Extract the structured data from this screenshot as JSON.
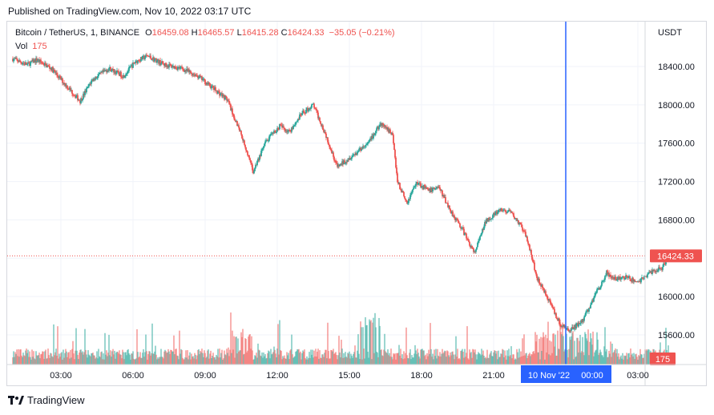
{
  "header": {
    "published": "Published on TradingView.com, Nov 10, 2022 03:17 UTC"
  },
  "legend": {
    "symbol": "Bitcoin / TetherUS, 1, BINANCE",
    "open_label": "O",
    "open": "16459.08",
    "high_label": "H",
    "high": "16465.57",
    "low_label": "L",
    "low": "16415.28",
    "close_label": "C",
    "close": "16424.33",
    "change": "−35.05 (−0.21%)"
  },
  "volume": {
    "label": "Vol",
    "value": "175"
  },
  "footer": {
    "brand": "TradingView"
  },
  "colors": {
    "up": "#26a69a",
    "down": "#ef5350",
    "crosshair": "#2962ff",
    "price_tag": "#ef5350"
  },
  "chart_data": {
    "type": "candlestick",
    "currency": "USDT",
    "ylim": [
      15400,
      18700
    ],
    "y_ticks": [
      "18400.00",
      "18000.00",
      "17600.00",
      "17200.00",
      "16800.00",
      "16400.00",
      "16000.00",
      "15600.00"
    ],
    "x_ticks": [
      "03:00",
      "06:00",
      "09:00",
      "12:00",
      "15:00",
      "18:00",
      "21:00",
      "00:00",
      "03:00"
    ],
    "x_tick_hours": [
      3,
      6,
      9,
      12,
      15,
      18,
      21,
      24,
      27
    ],
    "x_range_hours": [
      1.0,
      28.3
    ],
    "last_price": 16424.33,
    "last_price_label": "16424.33",
    "last_volume_label": "175",
    "crosshair": {
      "hour": 24.0,
      "date_label": "10 Nov '22",
      "time_label": "00:00"
    },
    "path": [
      [
        1.0,
        18480
      ],
      [
        1.6,
        18420
      ],
      [
        2.0,
        18470
      ],
      [
        2.6,
        18380
      ],
      [
        3.3,
        18180
      ],
      [
        3.8,
        18040
      ],
      [
        4.3,
        18260
      ],
      [
        5.0,
        18380
      ],
      [
        5.6,
        18300
      ],
      [
        6.1,
        18450
      ],
      [
        6.6,
        18510
      ],
      [
        7.3,
        18420
      ],
      [
        8.0,
        18380
      ],
      [
        8.7,
        18300
      ],
      [
        9.3,
        18180
      ],
      [
        9.9,
        18060
      ],
      [
        10.5,
        17700
      ],
      [
        11.0,
        17300
      ],
      [
        11.5,
        17600
      ],
      [
        12.1,
        17780
      ],
      [
        12.5,
        17720
      ],
      [
        13.0,
        17900
      ],
      [
        13.5,
        18000
      ],
      [
        14.0,
        17700
      ],
      [
        14.5,
        17350
      ],
      [
        15.0,
        17450
      ],
      [
        15.4,
        17520
      ],
      [
        15.8,
        17600
      ],
      [
        16.3,
        17800
      ],
      [
        16.8,
        17700
      ],
      [
        17.0,
        17200
      ],
      [
        17.4,
        16980
      ],
      [
        17.8,
        17200
      ],
      [
        18.3,
        17100
      ],
      [
        18.7,
        17150
      ],
      [
        19.2,
        16900
      ],
      [
        19.7,
        16700
      ],
      [
        20.2,
        16450
      ],
      [
        20.7,
        16800
      ],
      [
        21.3,
        16900
      ],
      [
        21.7,
        16880
      ],
      [
        22.1,
        16750
      ],
      [
        22.4,
        16600
      ],
      [
        22.8,
        16200
      ],
      [
        23.2,
        16000
      ],
      [
        23.8,
        15700
      ],
      [
        24.2,
        15650
      ],
      [
        24.7,
        15750
      ],
      [
        25.2,
        16000
      ],
      [
        25.7,
        16250
      ],
      [
        26.0,
        16180
      ],
      [
        26.5,
        16200
      ],
      [
        27.0,
        16150
      ],
      [
        27.5,
        16250
      ],
      [
        28.0,
        16300
      ],
      [
        28.3,
        16424.33
      ]
    ]
  }
}
